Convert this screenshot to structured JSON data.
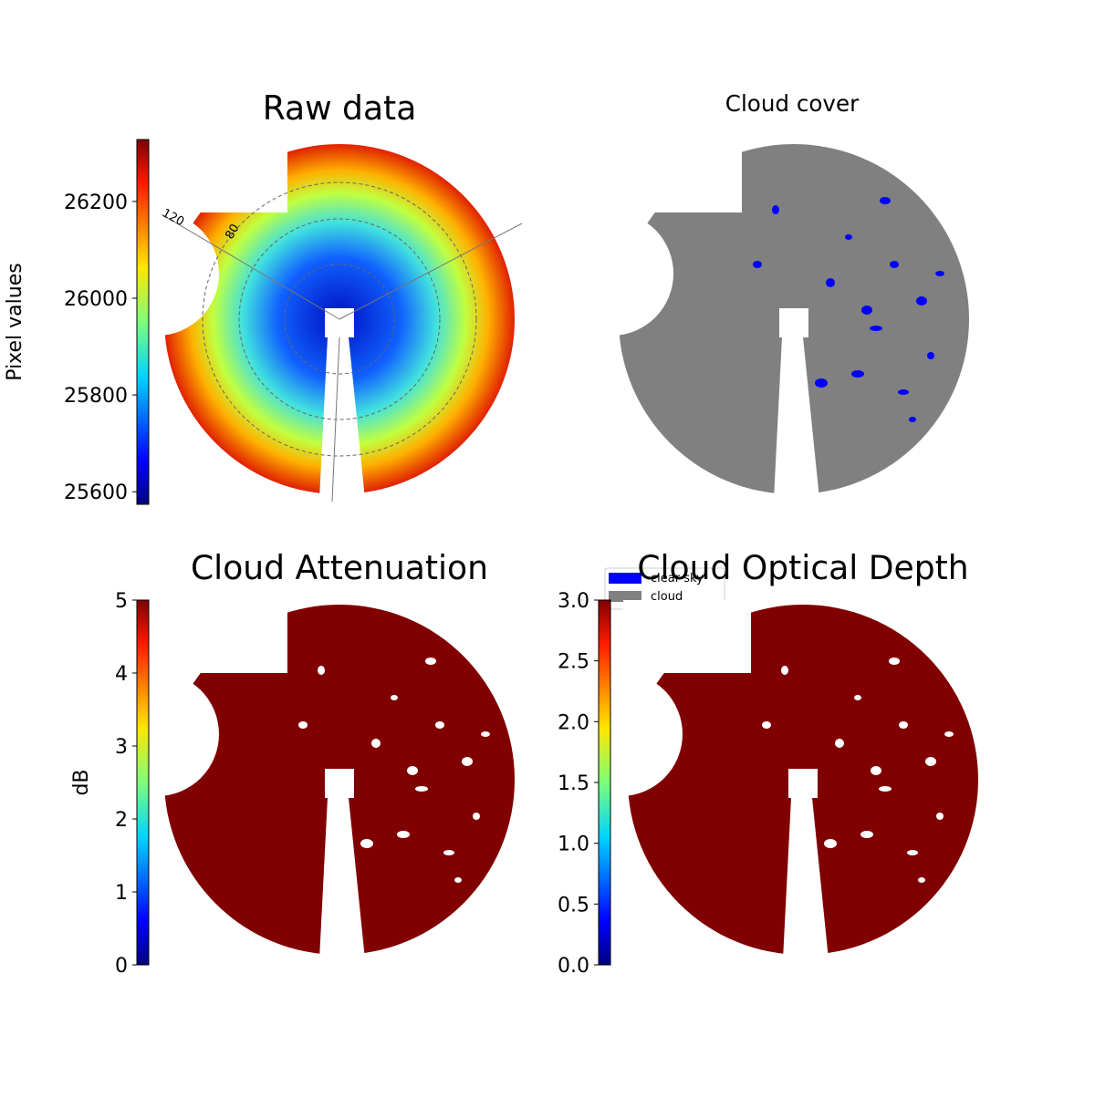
{
  "chart_data": [
    {
      "type": "image",
      "title": "Raw data",
      "colorbar_label": "Pixel values",
      "ylim": [
        25574,
        26328
      ],
      "yticks": [
        25600,
        25800,
        26000,
        26200
      ],
      "annotations": [
        "120",
        "80"
      ]
    },
    {
      "type": "image",
      "title": "Cloud cover",
      "color": "#808080",
      "legend": [
        {
          "name": "clear sky",
          "color": "#0000ff"
        },
        {
          "name": "cloud",
          "color": "#808080"
        }
      ]
    },
    {
      "type": "image",
      "title": "Cloud Attenuation",
      "colorbar_label": "dB",
      "color": "#800000",
      "ylim": [
        0,
        5
      ],
      "yticks": [
        0,
        1,
        2,
        3,
        4,
        5
      ]
    },
    {
      "type": "image",
      "title": "Cloud Optical Depth",
      "color": "#800000",
      "ylim": [
        0,
        3
      ],
      "yticks": [
        {
          "value": 0,
          "label": "0.0"
        },
        {
          "value": 0.5,
          "label": "0.5"
        },
        {
          "value": 1,
          "label": "1.0"
        },
        {
          "value": 1.5,
          "label": "1.5"
        },
        {
          "value": 2,
          "label": "2.0"
        },
        {
          "value": 2.5,
          "label": "2.5"
        },
        {
          "value": 3,
          "label": "3.0"
        }
      ]
    }
  ]
}
